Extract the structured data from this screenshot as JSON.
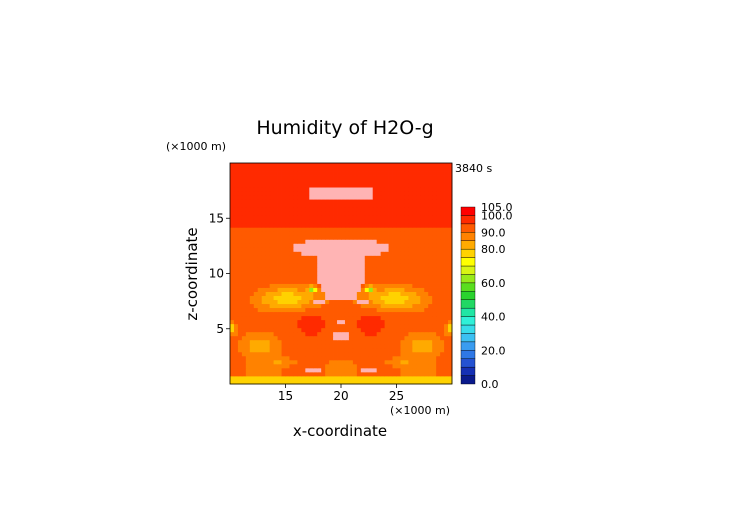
{
  "chart_data": {
    "type": "heatmap",
    "title": "Humidity of H2O-g",
    "xlabel": "x-coordinate",
    "ylabel": "z-coordinate",
    "x_unit": "(×1000 m)",
    "y_unit": "(×1000 m)",
    "time_label": "3840 s",
    "xlim": [
      10,
      30
    ],
    "ylim": [
      0,
      20
    ],
    "x_ticks": [
      15,
      20,
      25
    ],
    "y_ticks": [
      5,
      10,
      15
    ],
    "colorbar": {
      "levels": [
        0,
        5,
        10,
        15,
        20,
        25,
        30,
        35,
        40,
        45,
        50,
        55,
        60,
        65,
        70,
        75,
        80,
        85,
        90,
        95,
        100,
        105
      ],
      "tick_labels": [
        "0.0",
        "20.0",
        "40.0",
        "60.0",
        "80.0",
        "90.0",
        "100.0",
        "105.0"
      ],
      "tick_values": [
        0,
        20,
        40,
        60,
        80,
        90,
        100,
        105
      ],
      "colors": [
        "#0a1a8c",
        "#1530b4",
        "#2452d2",
        "#2f78e6",
        "#3a9cf0",
        "#3cc0f2",
        "#38dcea",
        "#30f0d8",
        "#20e6a4",
        "#22d864",
        "#2ad22e",
        "#5ade1e",
        "#98ea1a",
        "#d8f414",
        "#ffff00",
        "#ffd200",
        "#ffaa00",
        "#ff8200",
        "#ff5a00",
        "#ff2a00",
        "#ff0000",
        "#ffffff"
      ]
    },
    "fields": {
      "background_level": 95,
      "surface_level": 75,
      "saturated_regions": "pink (≥100) plume core and upper anvil",
      "dry_regions": "yellow (75-80) lobes near z≈8 and near surface"
    }
  }
}
